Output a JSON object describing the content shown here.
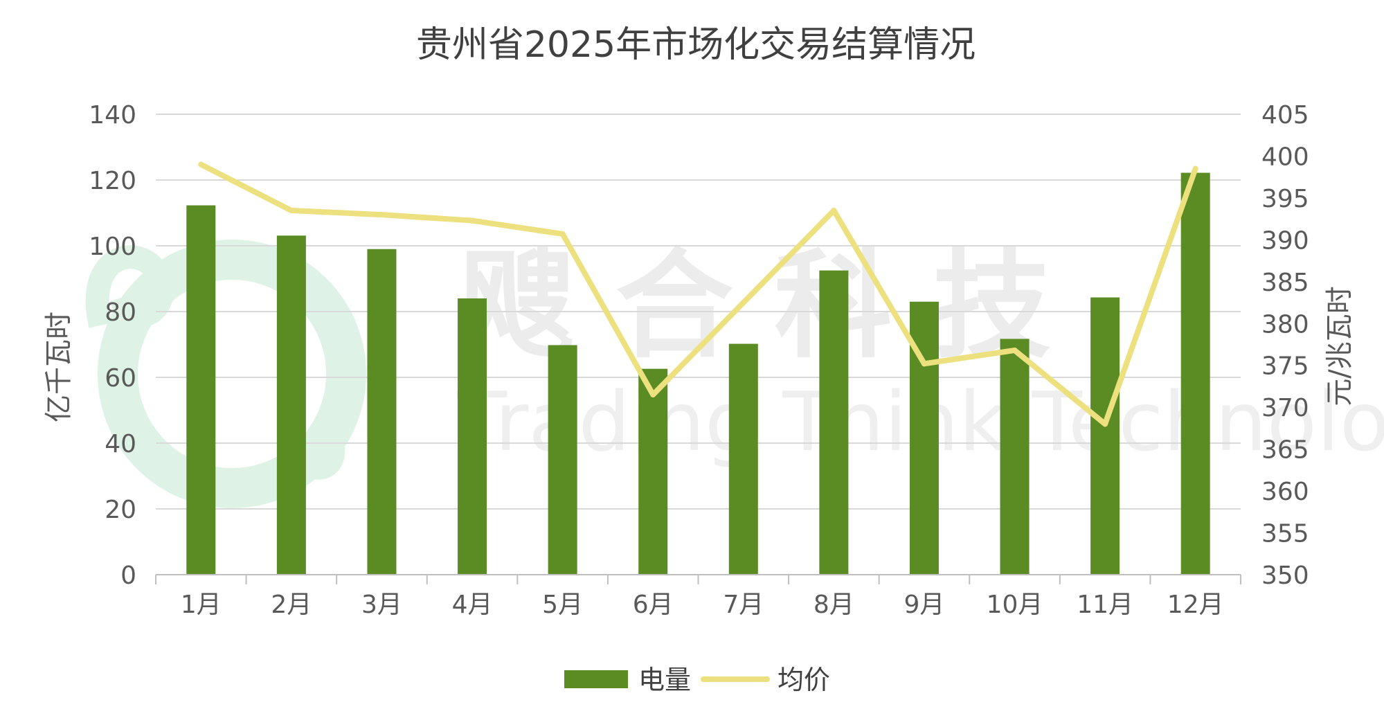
{
  "chart_data": {
    "type": "bar",
    "title": "贵州省2025年市场化交易结算情况",
    "categories": [
      "1月",
      "2月",
      "3月",
      "4月",
      "5月",
      "6月",
      "7月",
      "8月",
      "9月",
      "10月",
      "11月",
      "12月"
    ],
    "series": [
      {
        "name": "电量",
        "type": "bar",
        "axis": "left",
        "color": "#5b8c23",
        "values": [
          112.3,
          103.1,
          99.0,
          84.0,
          69.8,
          62.6,
          70.2,
          92.5,
          83.0,
          71.7,
          84.3,
          122.2
        ]
      },
      {
        "name": "均价",
        "type": "line",
        "axis": "right",
        "color": "#ede07f",
        "values": [
          399.0,
          393.5,
          393.0,
          392.3,
          390.7,
          371.5,
          382.5,
          393.5,
          375.2,
          376.8,
          368.0,
          398.5
        ]
      }
    ],
    "ylabel": "亿千瓦时",
    "ylabel_right": "元/兆瓦时",
    "ylim": [
      0,
      140
    ],
    "yticks": [
      0,
      20,
      40,
      60,
      80,
      100,
      120,
      140
    ],
    "ylim_right": [
      350,
      405
    ],
    "yticks_right": [
      350,
      355,
      360,
      365,
      370,
      375,
      380,
      385,
      390,
      395,
      400,
      405
    ],
    "grid": true,
    "legend_position": "bottom"
  },
  "watermark": {
    "cn": "飕 合 科 技",
    "en": "Trading Think Technology"
  }
}
